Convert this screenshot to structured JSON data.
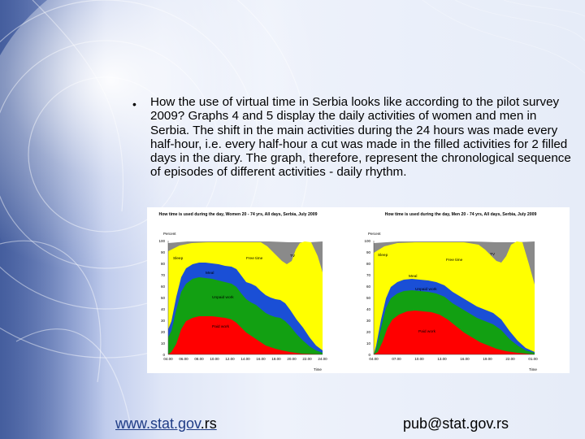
{
  "slide": {
    "bullet": "•",
    "paragraph": "How the use of virtual time in Serbia looks like according to the pilot survey 2009? Graphs 4 and 5 display the daily activities of women and men in Serbia. The shift in the main activities during the 24 hours was made every half-hour, i.e. every half-hour a cut was made in the filled activities for 2 filled days in the diary. The graph, therefore, represent the chronological sequence of episodes of different activities - daily rhythm."
  },
  "footer": {
    "link_main": "www.stat.gov",
    "link_suffix": ".rs",
    "email": "pub@stat.gov.rs"
  },
  "chart_data": [
    {
      "type": "area",
      "title": "How time is used during the day, Women 20 - 74 yrs, All days, Serbia, July 2009",
      "ylabel": "Percent",
      "xlabel": "Time",
      "ylim": [
        0,
        100
      ],
      "x_ticks": [
        "04.00",
        "06.00",
        "08.00",
        "10.00",
        "12.00",
        "14.00",
        "16.00",
        "18.00",
        "20.00",
        "22.00",
        "24.00"
      ],
      "y_ticks": [
        0,
        10,
        20,
        30,
        40,
        50,
        60,
        70,
        80,
        90,
        100
      ],
      "area_labels": [
        "Sleep",
        "Free time",
        "TV",
        "Meal",
        "Unpaid work",
        "Paid work"
      ],
      "colors": {
        "red": "#ff0000",
        "green": "#12a012",
        "blue": "#1a4fd6",
        "yellow": "#ffff00",
        "gray": "#8a8a8a"
      }
    },
    {
      "type": "area",
      "title": "How time is used during the day, Men 20 - 74 yrs, All days, Serbia, July 2009",
      "ylabel": "Percent",
      "xlabel": "Time",
      "ylim": [
        0,
        100
      ],
      "x_ticks": [
        "04.00",
        "07.00",
        "10.00",
        "13.00",
        "16.00",
        "19.00",
        "22.00",
        "01.00"
      ],
      "y_ticks": [
        0,
        10,
        20,
        30,
        40,
        50,
        60,
        70,
        80,
        90,
        100
      ],
      "area_labels": [
        "Sleep",
        "Free time",
        "TV",
        "Meal",
        "Unpaid work",
        "Paid work"
      ],
      "colors": {
        "red": "#ff0000",
        "green": "#12a012",
        "blue": "#1a4fd6",
        "yellow": "#ffff00",
        "gray": "#8a8a8a"
      }
    }
  ]
}
